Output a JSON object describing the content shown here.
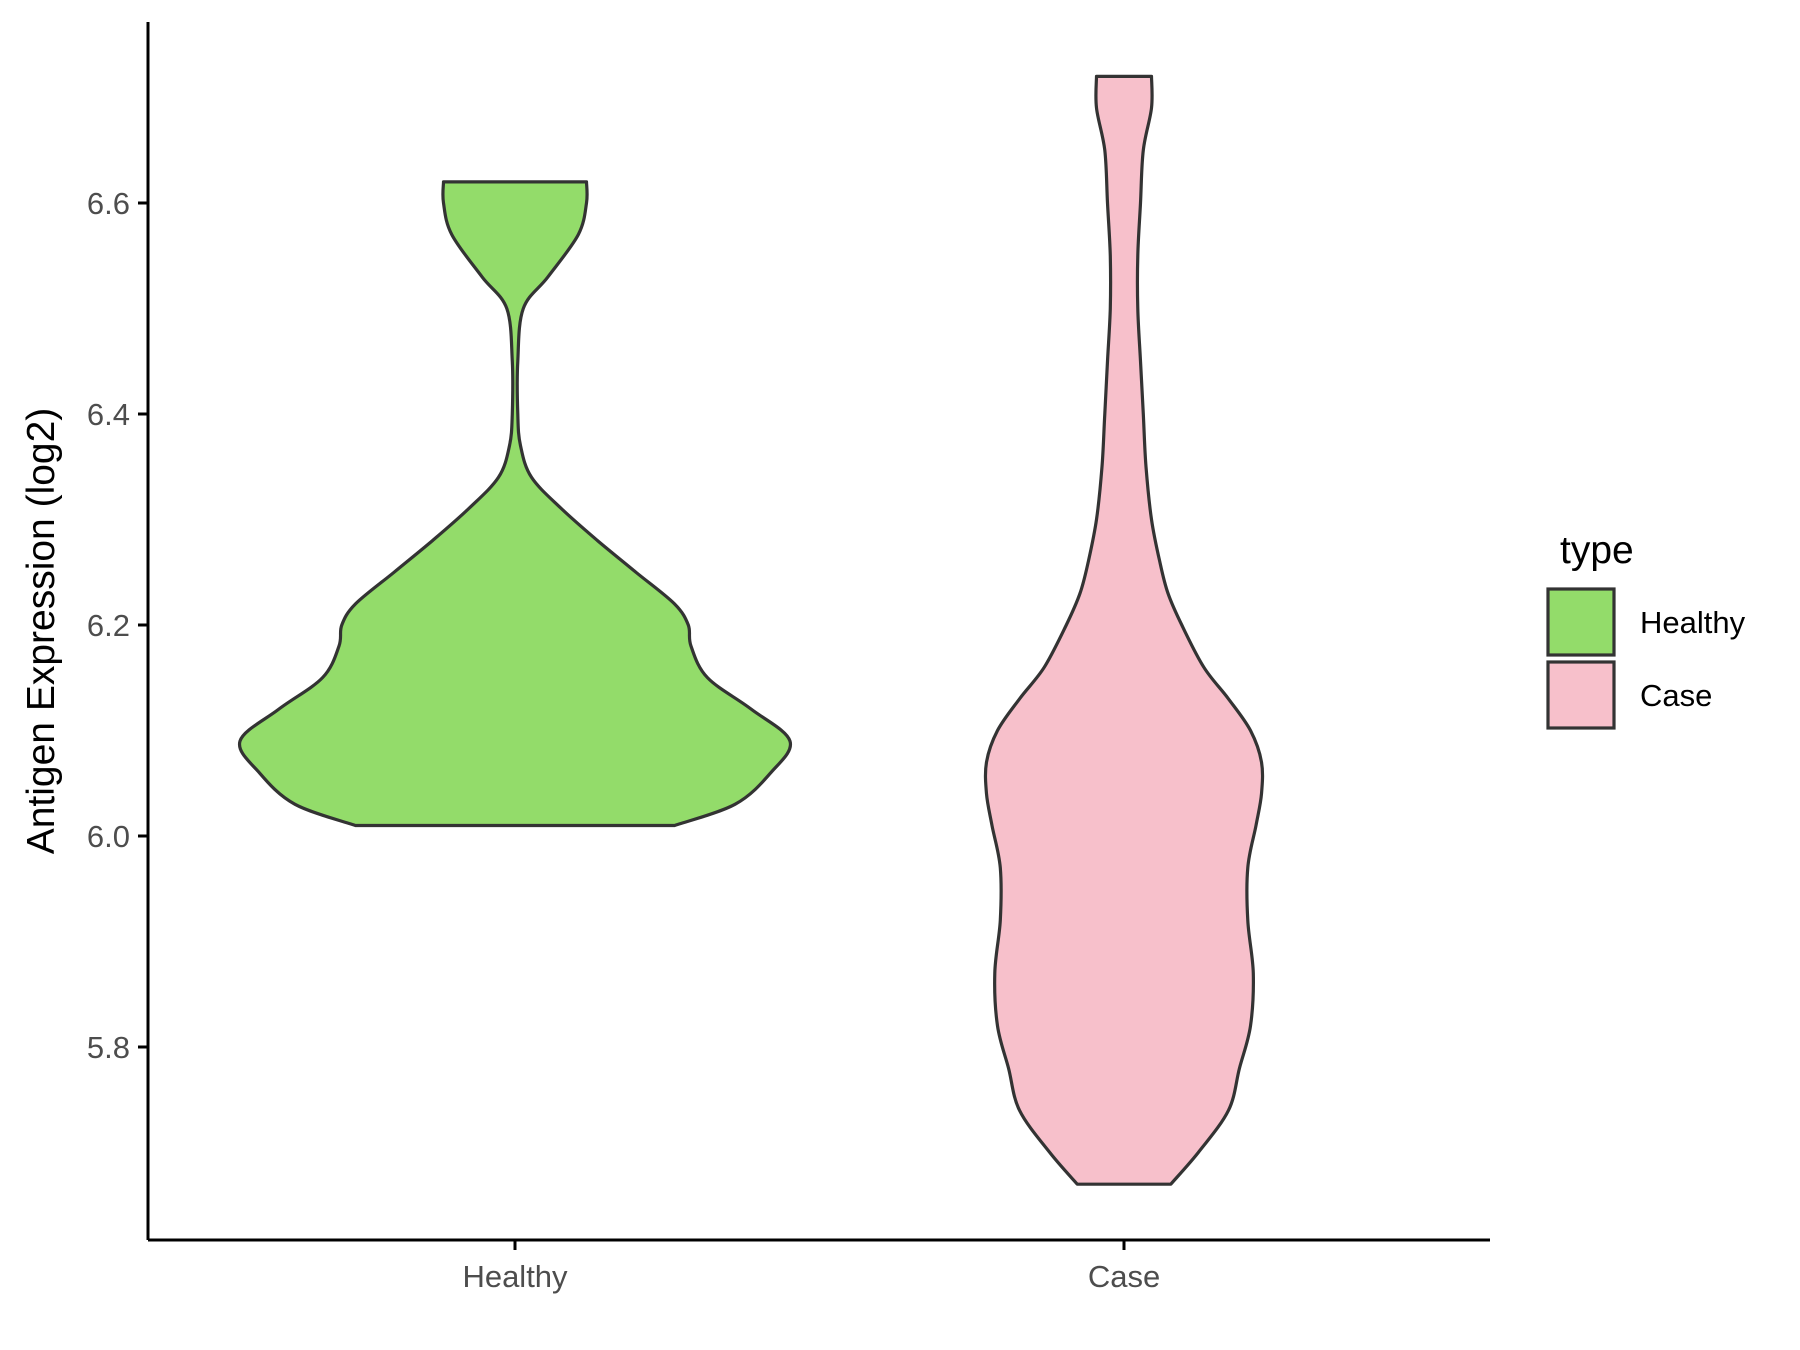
{
  "chart_data": {
    "type": "violin",
    "title": "",
    "xlabel": "",
    "ylabel": "Antigen Expression (log2)",
    "categories": [
      "Healthy",
      "Case"
    ],
    "ylim": [
      5.63,
      6.78
    ],
    "yticks": [
      "5.8",
      "6.0",
      "6.2",
      "6.4",
      "6.6"
    ],
    "grid": false,
    "legend": {
      "title": "type",
      "position": "right",
      "items": [
        {
          "label": "Healthy",
          "color": "#93dc6a"
        },
        {
          "label": "Case",
          "color": "#f7c0cb"
        }
      ]
    },
    "series": [
      {
        "category": "Healthy",
        "color": "#93dc6a",
        "min": 6.01,
        "max": 6.62,
        "density_profile": [
          [
            6.01,
            0.58
          ],
          [
            6.03,
            0.8
          ],
          [
            6.06,
            0.93
          ],
          [
            6.09,
            1.0
          ],
          [
            6.12,
            0.86
          ],
          [
            6.15,
            0.7
          ],
          [
            6.18,
            0.64
          ],
          [
            6.2,
            0.63
          ],
          [
            6.22,
            0.58
          ],
          [
            6.25,
            0.44
          ],
          [
            6.28,
            0.3
          ],
          [
            6.31,
            0.17
          ],
          [
            6.34,
            0.06
          ],
          [
            6.37,
            0.02
          ],
          [
            6.4,
            0.01
          ],
          [
            6.45,
            0.01
          ],
          [
            6.5,
            0.03
          ],
          [
            6.53,
            0.12
          ],
          [
            6.57,
            0.23
          ],
          [
            6.6,
            0.26
          ],
          [
            6.62,
            0.26
          ]
        ]
      },
      {
        "category": "Case",
        "color": "#f7c0cb",
        "min": 5.67,
        "max": 6.72,
        "density_profile": [
          [
            5.67,
            0.17
          ],
          [
            5.7,
            0.27
          ],
          [
            5.74,
            0.38
          ],
          [
            5.78,
            0.42
          ],
          [
            5.82,
            0.46
          ],
          [
            5.87,
            0.47
          ],
          [
            5.92,
            0.45
          ],
          [
            5.97,
            0.45
          ],
          [
            6.01,
            0.48
          ],
          [
            6.04,
            0.5
          ],
          [
            6.07,
            0.5
          ],
          [
            6.1,
            0.46
          ],
          [
            6.13,
            0.38
          ],
          [
            6.16,
            0.29
          ],
          [
            6.2,
            0.21
          ],
          [
            6.23,
            0.16
          ],
          [
            6.26,
            0.13
          ],
          [
            6.3,
            0.1
          ],
          [
            6.35,
            0.08
          ],
          [
            6.4,
            0.07
          ],
          [
            6.45,
            0.06
          ],
          [
            6.5,
            0.05
          ],
          [
            6.55,
            0.05
          ],
          [
            6.6,
            0.06
          ],
          [
            6.65,
            0.07
          ],
          [
            6.69,
            0.1
          ],
          [
            6.72,
            0.1
          ]
        ]
      }
    ]
  }
}
